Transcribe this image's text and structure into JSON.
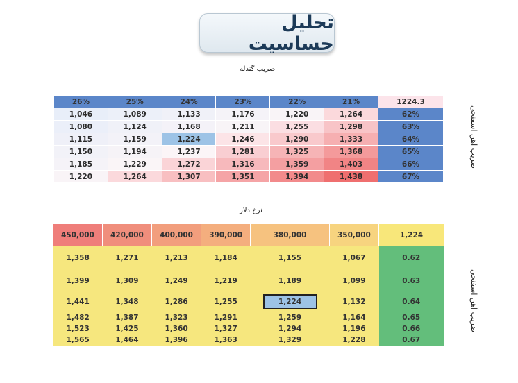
{
  "title": "تحلیل حساسیت",
  "caption_top": "ضریب گندله",
  "caption_middle": "نرخ دلار",
  "side_label": "ضریب آهن اسفنجی",
  "table1": {
    "corner": "1224.3",
    "headers": [
      "26%",
      "25%",
      "24%",
      "23%",
      "22%",
      "21%"
    ],
    "rows": [
      {
        "label": "62%",
        "values": [
          "1,046",
          "1,089",
          "1,133",
          "1,176",
          "1,220",
          "1,264"
        ]
      },
      {
        "label": "63%",
        "values": [
          "1,080",
          "1,124",
          "1,168",
          "1,211",
          "1,255",
          "1,298"
        ]
      },
      {
        "label": "64%",
        "values": [
          "1,115",
          "1,159",
          "1,224",
          "1,246",
          "1,290",
          "1,333"
        ]
      },
      {
        "label": "65%",
        "values": [
          "1,150",
          "1,194",
          "1,237",
          "1,281",
          "1,325",
          "1,368"
        ]
      },
      {
        "label": "66%",
        "values": [
          "1,185",
          "1,229",
          "1,272",
          "1,316",
          "1,359",
          "1,403"
        ]
      },
      {
        "label": "67%",
        "values": [
          "1,220",
          "1,264",
          "1,307",
          "1,351",
          "1,394",
          "1,438"
        ]
      }
    ]
  },
  "table2": {
    "corner": "1,224",
    "headers": [
      "450,000",
      "420,000",
      "400,000",
      "390,000",
      "380,000",
      "350,000"
    ],
    "rows": [
      {
        "label": "0.62",
        "values": [
          "1,358",
          "1,271",
          "1,213",
          "1,184",
          "1,155",
          "1,067"
        ]
      },
      {
        "label": "0.63",
        "values": [
          "1,399",
          "1,309",
          "1,249",
          "1,219",
          "1,189",
          "1,099"
        ]
      },
      {
        "label": "0.64",
        "values": [
          "1,441",
          "1,348",
          "1,286",
          "1,255",
          "1,224",
          "1,132"
        ]
      },
      {
        "label": "0.65",
        "values": [
          "1,482",
          "1,387",
          "1,323",
          "1,291",
          "1,259",
          "1,164"
        ]
      },
      {
        "label": "0.66",
        "values": [
          "1,523",
          "1,425",
          "1,360",
          "1,327",
          "1,294",
          "1,196"
        ]
      },
      {
        "label": "0.67",
        "values": [
          "1,565",
          "1,464",
          "1,396",
          "1,363",
          "1,329",
          "1,228"
        ]
      }
    ]
  },
  "colors": {
    "header_blue": "#5b86c9",
    "corner_pink": "#fce4ea",
    "highlight_blue": "#9dc3e6",
    "header_red": "#ef7e7a",
    "corner_yellow": "#f8e77a",
    "body_yellow": "#f6e77e",
    "label_green": "#63be7b"
  }
}
